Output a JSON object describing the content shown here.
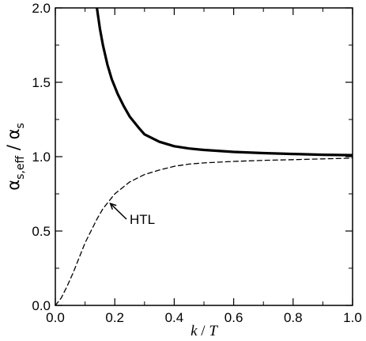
{
  "chart_data": {
    "type": "line",
    "title": "",
    "xlabel": {
      "var": "k",
      "slash": " / ",
      "den": "T"
    },
    "ylabel": {
      "num": "α",
      "num_sub": "s,eff",
      "slash": " / ",
      "den": "α",
      "den_sub": "s"
    },
    "xlim": [
      0.0,
      1.0
    ],
    "ylim": [
      0.0,
      2.0
    ],
    "x_ticks": [
      0.0,
      0.2,
      0.4,
      0.6,
      0.8,
      1.0
    ],
    "x_tick_labels": [
      "0.0",
      "0.2",
      "0.4",
      "0.6",
      "0.8",
      "1.0"
    ],
    "y_ticks": [
      0.0,
      0.5,
      1.0,
      1.5,
      2.0
    ],
    "y_tick_labels": [
      "0.0",
      "0.5",
      "1.0",
      "1.5",
      "2.0"
    ],
    "grid": false,
    "series": [
      {
        "style": "solid",
        "color": "#000000",
        "x": [
          0.14,
          0.145,
          0.15,
          0.16,
          0.175,
          0.19,
          0.21,
          0.23,
          0.25,
          0.28,
          0.3,
          0.35,
          0.4,
          0.45,
          0.5,
          0.6,
          0.7,
          0.8,
          0.9,
          1.0
        ],
        "y": [
          2.0,
          1.93,
          1.86,
          1.75,
          1.62,
          1.52,
          1.42,
          1.34,
          1.27,
          1.195,
          1.15,
          1.1,
          1.07,
          1.055,
          1.045,
          1.032,
          1.024,
          1.018,
          1.013,
          1.01
        ]
      },
      {
        "name": "HTL",
        "style": "dashed",
        "color": "#000000",
        "x": [
          0.0,
          0.02,
          0.04,
          0.06,
          0.08,
          0.1,
          0.12,
          0.14,
          0.16,
          0.18,
          0.2,
          0.25,
          0.3,
          0.35,
          0.4,
          0.45,
          0.5,
          0.6,
          0.7,
          0.8,
          0.9,
          1.0
        ],
        "y": [
          0.0,
          0.05,
          0.13,
          0.22,
          0.32,
          0.42,
          0.5,
          0.58,
          0.65,
          0.7,
          0.75,
          0.83,
          0.88,
          0.91,
          0.935,
          0.95,
          0.958,
          0.968,
          0.975,
          0.98,
          0.985,
          0.99
        ]
      }
    ],
    "annotations": [
      {
        "text": "HTL",
        "series": "HTL",
        "arrow_to": {
          "x": 0.185,
          "y": 0.685
        }
      }
    ]
  }
}
